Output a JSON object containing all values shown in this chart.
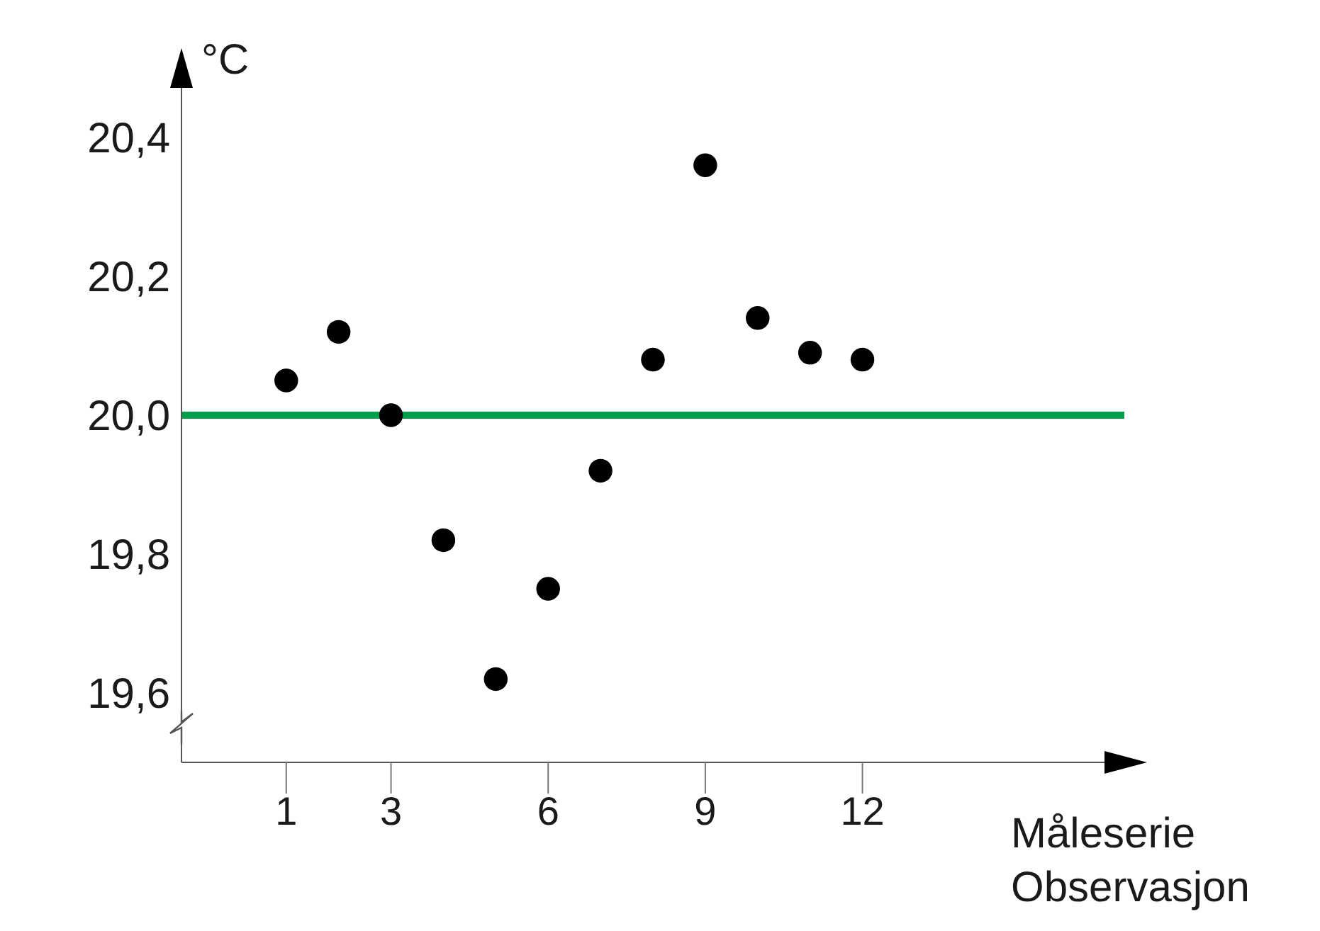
{
  "chart_data": {
    "type": "scatter",
    "xlabel": "Måleserie\nObservasjon",
    "ylabel": "°C",
    "x": [
      1,
      2,
      3,
      4,
      5,
      6,
      7,
      8,
      9,
      10,
      11,
      12
    ],
    "series": [
      {
        "color": "#000000",
        "values": [
          20.05,
          20.12,
          20.0,
          19.82,
          19.62,
          19.75,
          19.92,
          20.08,
          20.36,
          20.14,
          20.09,
          20.08
        ]
      }
    ],
    "xlim": [
      -1,
      17
    ],
    "xticks": [
      1,
      3,
      6,
      9,
      12
    ],
    "ylim": [
      19.5,
      20.5
    ],
    "yticks": [
      {
        "value": 19.6,
        "label": "19,6"
      },
      {
        "value": 19.8,
        "label": "19,8"
      },
      {
        "value": 20.0,
        "label": "20,0"
      },
      {
        "value": 20.2,
        "label": "20,2"
      },
      {
        "value": 20.4,
        "label": "20,4"
      }
    ],
    "ref_lines": [
      {
        "axis": "y",
        "value": 20.0,
        "color": "#00a04a"
      }
    ],
    "marker": "circle"
  }
}
